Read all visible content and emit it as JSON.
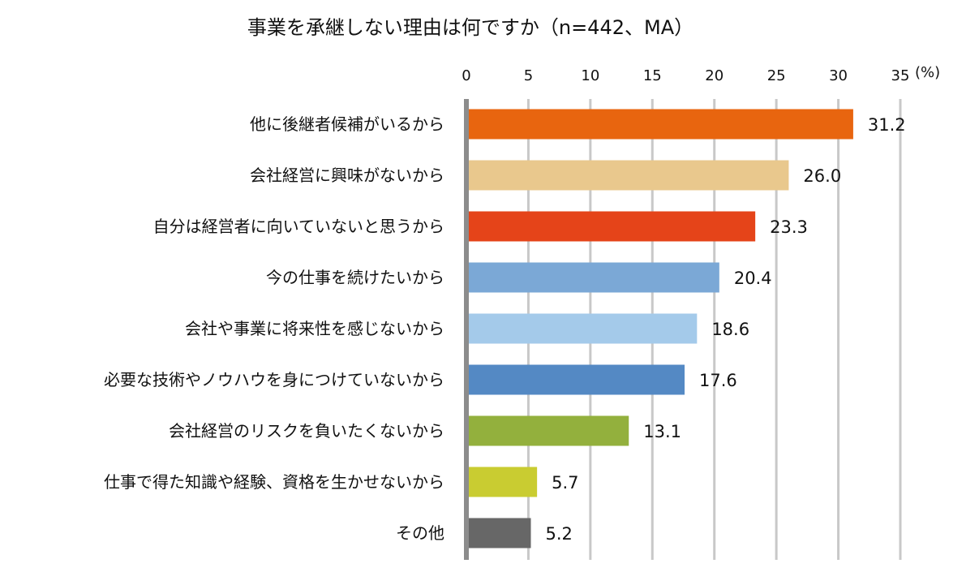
{
  "chart_data": {
    "type": "bar",
    "orientation": "horizontal",
    "title": "事業を承継しない理由は何ですか（n=442、MA）",
    "unit_label": "(%)",
    "xlim": [
      0,
      35
    ],
    "ticks": [
      0,
      5,
      10,
      15,
      20,
      25,
      30,
      35
    ],
    "grid": true,
    "categories": [
      "他に後継者候補がいるから",
      "会社経営に興味がないから",
      "自分は経営者に向いていないと思うから",
      "今の仕事を続けたいから",
      "会社や事業に将来性を感じないから",
      "必要な技術やノウハウを身につけていないから",
      "会社経営のリスクを負いたくないから",
      "仕事で得た知識や経験、資格を生かせないから",
      "その他"
    ],
    "values": [
      31.2,
      26.0,
      23.3,
      20.4,
      18.6,
      17.6,
      13.1,
      5.7,
      5.2
    ],
    "value_labels": [
      "31.2",
      "26.0",
      "23.3",
      "20.4",
      "18.6",
      "17.6",
      "13.1",
      "5.7",
      "5.2"
    ],
    "colors": [
      "#E8650F",
      "#E9C88D",
      "#E54419",
      "#7BA8D6",
      "#A4CAEA",
      "#5489C4",
      "#93B03D",
      "#C9CC31",
      "#676767"
    ]
  }
}
